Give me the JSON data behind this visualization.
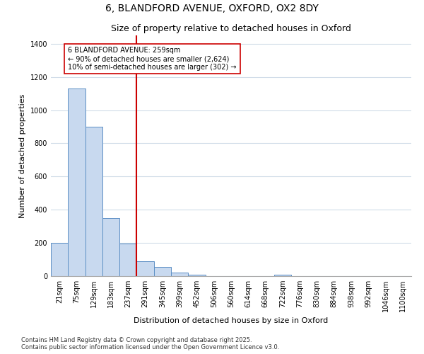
{
  "title1": "6, BLANDFORD AVENUE, OXFORD, OX2 8DY",
  "title2": "Size of property relative to detached houses in Oxford",
  "xlabel": "Distribution of detached houses by size in Oxford",
  "ylabel": "Number of detached properties",
  "categories": [
    "21sqm",
    "75sqm",
    "129sqm",
    "183sqm",
    "237sqm",
    "291sqm",
    "345sqm",
    "399sqm",
    "452sqm",
    "506sqm",
    "560sqm",
    "614sqm",
    "668sqm",
    "722sqm",
    "776sqm",
    "830sqm",
    "884sqm",
    "938sqm",
    "992sqm",
    "1046sqm",
    "1100sqm"
  ],
  "values": [
    200,
    1130,
    900,
    350,
    195,
    90,
    55,
    20,
    10,
    0,
    0,
    0,
    0,
    10,
    0,
    0,
    0,
    0,
    0,
    0,
    0
  ],
  "bar_color": "#c8d9ef",
  "bar_edge_color": "#5b8ec4",
  "bg_color": "#ffffff",
  "plot_bg_color": "#ffffff",
  "grid_color": "#d0dce8",
  "vline_color": "#cc0000",
  "annotation_text": "6 BLANDFORD AVENUE: 259sqm\n← 90% of detached houses are smaller (2,624)\n10% of semi-detached houses are larger (302) →",
  "annotation_box_facecolor": "#ffffff",
  "annotation_box_edgecolor": "#cc0000",
  "footnote1": "Contains HM Land Registry data © Crown copyright and database right 2025.",
  "footnote2": "Contains public sector information licensed under the Open Government Licence v3.0.",
  "ylim": [
    0,
    1450
  ],
  "yticks": [
    0,
    200,
    400,
    600,
    800,
    1000,
    1200,
    1400
  ],
  "title_fontsize": 10,
  "subtitle_fontsize": 9,
  "axis_label_fontsize": 8,
  "tick_fontsize": 7,
  "annotation_fontsize": 7,
  "footnote_fontsize": 6
}
